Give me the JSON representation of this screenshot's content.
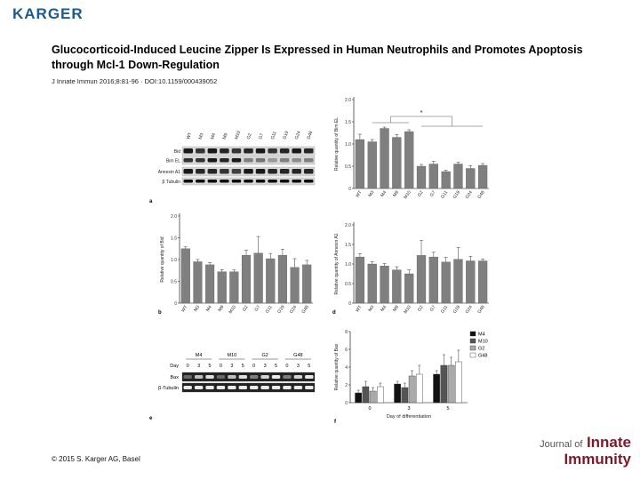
{
  "header": {
    "publisher_logo_text": "KARGER",
    "title": "Glucocorticoid-Induced Leucine Zipper Is Expressed in Human Neutrophils and Promotes Apoptosis through Mcl-1 Down-Regulation",
    "citation": "J Innate Immun 2016;8:81-96 · DOI:10.1159/000439052"
  },
  "footer": {
    "copyright": "© 2015 S. Karger AG, Basel",
    "journal_line1": "Journal of",
    "journal_line1_bold": "Innate",
    "journal_line2": "Immunity"
  },
  "colors": {
    "bar_gray": "#7f7f7f",
    "karger_blue": "#1c5b8c",
    "journal_red": "#7d1a2a"
  },
  "blot_a": {
    "letter": "a",
    "lanes": [
      "WT",
      "M3",
      "M4",
      "M9",
      "M10",
      "G2",
      "G7",
      "G11",
      "G19",
      "G24",
      "G48"
    ],
    "rows": [
      "Bid",
      "Bim EL",
      "Annexin A1",
      "β Tubulin"
    ]
  },
  "blot_e": {
    "letter": "e",
    "groups": [
      "M4",
      "M10",
      "G2",
      "G48"
    ],
    "day_label": "Day",
    "days": [
      "0",
      "3",
      "5",
      "0",
      "3",
      "5",
      "0",
      "3",
      "5",
      "0",
      "3",
      "5"
    ],
    "rows": [
      "Bax",
      "β-Tubulin"
    ]
  },
  "chart_data": [
    {
      "id": "panel-a-bimel",
      "type": "bar",
      "letter": "",
      "ylabel": "Relative quantity of Bim EL",
      "categories": [
        "WT",
        "M3",
        "M4",
        "M9",
        "M10",
        "G2",
        "G7",
        "G11",
        "G19",
        "G24",
        "G48"
      ],
      "values": [
        1.1,
        1.05,
        1.35,
        1.15,
        1.28,
        0.5,
        0.55,
        0.38,
        0.55,
        0.45,
        0.52
      ],
      "errors": [
        0.12,
        0.05,
        0.03,
        0.06,
        0.04,
        0.04,
        0.06,
        0.03,
        0.04,
        0.06,
        0.04
      ],
      "ylim": [
        0,
        2.0
      ],
      "yticks": [
        "0",
        "0.5",
        "1.0",
        "1.5",
        "2.0"
      ],
      "annotation": "*"
    },
    {
      "id": "panel-b-bid",
      "type": "bar",
      "letter": "b",
      "ylabel": "Relative quantity of Bid",
      "categories": [
        "WT",
        "M3",
        "M4",
        "M9",
        "M10",
        "G2",
        "G7",
        "G11",
        "G19",
        "G24",
        "G48"
      ],
      "values": [
        1.25,
        0.95,
        0.88,
        0.72,
        0.72,
        1.1,
        1.15,
        1.02,
        1.1,
        0.82,
        0.88
      ],
      "errors": [
        0.04,
        0.05,
        0.05,
        0.05,
        0.04,
        0.12,
        0.38,
        0.12,
        0.14,
        0.2,
        0.1
      ],
      "ylim": [
        0,
        2.0
      ],
      "yticks": [
        "0",
        "0.5",
        "1.0",
        "1.5",
        "2.0"
      ]
    },
    {
      "id": "panel-d-annexin",
      "type": "bar",
      "letter": "d",
      "ylabel": "Relative quantity of Annexin A1",
      "categories": [
        "WT",
        "M3",
        "M4",
        "M9",
        "M10",
        "G2",
        "G7",
        "G11",
        "G19",
        "G24",
        "G48"
      ],
      "values": [
        1.18,
        1.0,
        0.95,
        0.85,
        0.75,
        1.22,
        1.18,
        1.05,
        1.12,
        1.08,
        1.08
      ],
      "errors": [
        0.08,
        0.06,
        0.06,
        0.08,
        0.1,
        0.38,
        0.12,
        0.12,
        0.3,
        0.12,
        0.05
      ],
      "ylim": [
        0,
        2.0
      ],
      "yticks": [
        "0",
        "0.5",
        "1.0",
        "1.5",
        "2.0"
      ]
    },
    {
      "id": "panel-f-bax",
      "type": "bar",
      "letter": "f",
      "ylabel": "Relative quantity of Bax",
      "xlabel": "Day of differentiation",
      "categories": [
        "0",
        "3",
        "5"
      ],
      "yticks": [
        "0",
        "2",
        "4",
        "6",
        "8"
      ],
      "ylim": [
        0,
        8
      ],
      "legend_placement": "right",
      "series": [
        {
          "name": "M4",
          "color": "#111111",
          "values": [
            1.1,
            2.1,
            3.2
          ],
          "errors": [
            0.3,
            0.3,
            0.4
          ]
        },
        {
          "name": "M10",
          "color": "#555555",
          "values": [
            1.8,
            1.7,
            4.2
          ],
          "errors": [
            0.6,
            0.5,
            1.2
          ]
        },
        {
          "name": "G2",
          "color": "#aaaaaa",
          "values": [
            1.3,
            3.0,
            4.2
          ],
          "errors": [
            0.4,
            0.6,
            0.9
          ]
        },
        {
          "name": "G48",
          "color": "#ffffff",
          "values": [
            1.8,
            3.2,
            4.6
          ],
          "errors": [
            0.4,
            1.0,
            1.3
          ]
        }
      ]
    }
  ]
}
